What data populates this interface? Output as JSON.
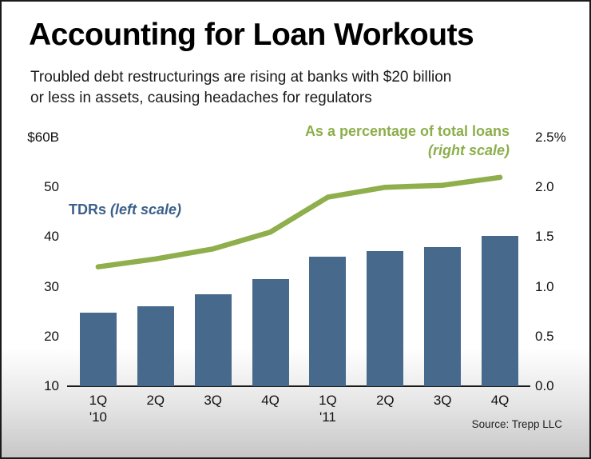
{
  "header": {
    "title": "Accounting for Loan Workouts",
    "subtitle_line1": "Troubled debt restructurings are rising at banks with $20 billion",
    "subtitle_line2": "or less in assets, causing headaches for regulators"
  },
  "annotations": {
    "line_label": "As a percentage of total loans",
    "line_sublabel": "(right scale)",
    "bar_label_bold": "TDRs",
    "bar_label_italic": " (left scale)"
  },
  "source": "Source: Trepp LLC",
  "colors": {
    "bar": "#47698C",
    "line": "#8FAE4C",
    "bar_label_text": "#3C608A",
    "line_label_text": "#8CAE4B",
    "axis": "#1A1A1A"
  },
  "chart_data": {
    "type": "bar+line combo",
    "title": "Accounting for Loan Workouts",
    "categories": [
      {
        "q": "1Q",
        "year": "'10"
      },
      {
        "q": "2Q"
      },
      {
        "q": "3Q"
      },
      {
        "q": "4Q"
      },
      {
        "q": "1Q",
        "year": "'11"
      },
      {
        "q": "2Q"
      },
      {
        "q": "3Q"
      },
      {
        "q": "4Q"
      }
    ],
    "series": [
      {
        "name": "TDRs",
        "type": "bar",
        "axis": "left",
        "unit": "$B",
        "values": [
          24.8,
          26.0,
          28.5,
          31.5,
          36.0,
          37.2,
          38.0,
          40.2
        ]
      },
      {
        "name": "As a percentage of total loans",
        "type": "line",
        "axis": "right",
        "unit": "%",
        "values": [
          1.2,
          1.28,
          1.38,
          1.55,
          1.9,
          2.0,
          2.02,
          2.1
        ]
      }
    ],
    "left_axis": {
      "min": 10,
      "max": 60,
      "tick_labels": [
        "$60B",
        "50",
        "40",
        "30",
        "20",
        "10"
      ]
    },
    "right_axis": {
      "min": 0.0,
      "max": 2.5,
      "tick_labels": [
        "2.5%",
        "2.0",
        "1.5",
        "1.0",
        "0.5",
        "0.0"
      ]
    },
    "grid": false,
    "legend": "inline annotations"
  }
}
